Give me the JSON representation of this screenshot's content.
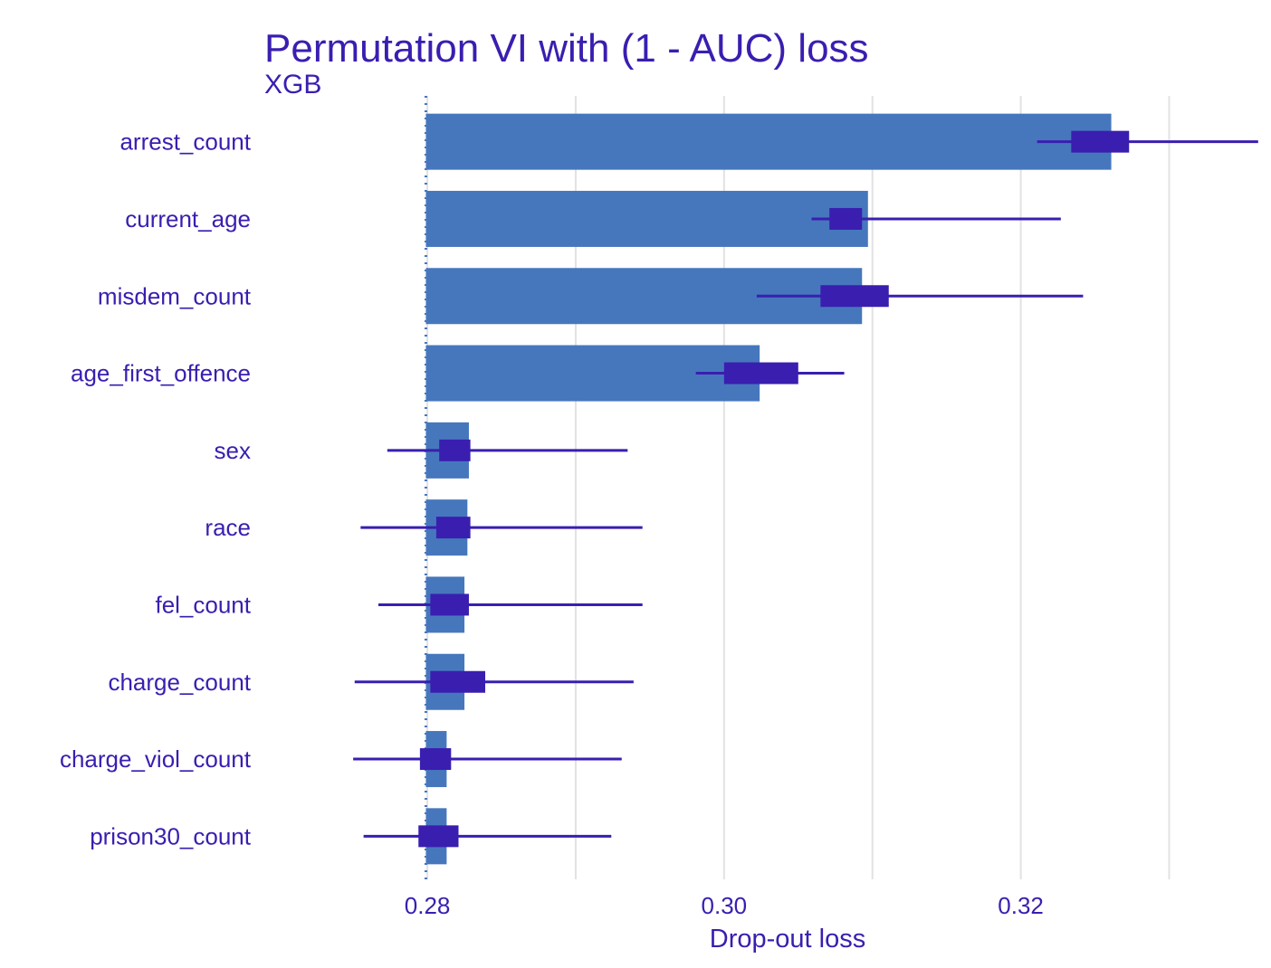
{
  "chart_data": {
    "type": "bar",
    "title": "Permutation VI with (1 - AUC) loss",
    "subtitle": "XGB",
    "xlabel": "Drop-out loss",
    "ylabel": "",
    "xlim": [
      0.2695,
      0.3365
    ],
    "x_ticks": [
      0.28,
      0.3,
      0.32
    ],
    "x_tick_labels": [
      "0.28",
      "0.30",
      "0.32"
    ],
    "baseline": 0.2799,
    "grid": true,
    "categories": [
      "arrest_count",
      "current_age",
      "misdem_count",
      "age_first_offence",
      "sex",
      "race",
      "fel_count",
      "charge_count",
      "charge_viol_count",
      "prison30_count"
    ],
    "values": [
      0.3261,
      0.3097,
      0.3093,
      0.3024,
      0.2828,
      0.2827,
      0.2825,
      0.2825,
      0.2813,
      0.2813
    ],
    "whisker_low": [
      0.3211,
      0.3059,
      0.3022,
      0.2981,
      0.2773,
      0.2755,
      0.2767,
      0.2751,
      0.275,
      0.2757
    ],
    "whisker_high": [
      0.336,
      0.3227,
      0.3242,
      0.3081,
      0.2935,
      0.2945,
      0.2945,
      0.2939,
      0.2931,
      0.2924
    ],
    "box_low": [
      0.3234,
      0.3071,
      0.3065,
      0.3,
      0.2808,
      0.2806,
      0.2802,
      0.2802,
      0.2795,
      0.2794
    ],
    "box_high": [
      0.3273,
      0.3093,
      0.3111,
      0.305,
      0.2829,
      0.2829,
      0.2828,
      0.2839,
      0.2816,
      0.2821
    ],
    "colors": {
      "bar": "#4677bd",
      "box": "#3a1eb0",
      "text": "#3a1eb0",
      "grid": "#e2e2e2",
      "baseline": "#4677bd"
    }
  }
}
